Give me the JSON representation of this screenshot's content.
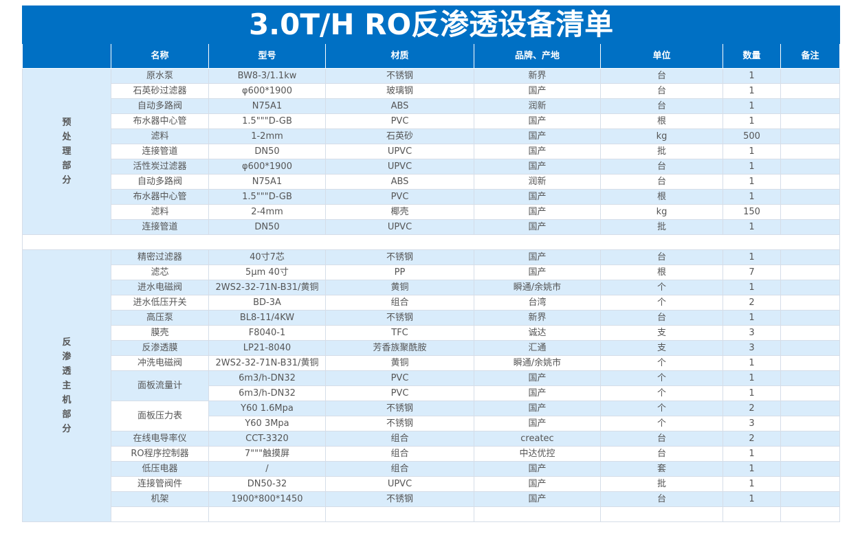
{
  "title": "3.0T/H RO反渗透设备清单",
  "headers": [
    "",
    "名称",
    "型号",
    "材质",
    "品牌、产地",
    "单位",
    "数量",
    "备注"
  ],
  "colors": {
    "header_bg": "#0070c4",
    "stripe": "#d9ecfb"
  },
  "sections": [
    {
      "label": "预处理部分",
      "rows": [
        {
          "name": "原水泵",
          "model": "BW8-3/1.1kw",
          "material": "不锈钢",
          "brand": "新界",
          "unit": "台",
          "qty": "1",
          "note": ""
        },
        {
          "name": "石英砂过滤器",
          "model": "φ600*1900",
          "material": "玻璃钢",
          "brand": "国产",
          "unit": "台",
          "qty": "1",
          "note": ""
        },
        {
          "name": "自动多路阀",
          "model": "N75A1",
          "material": "ABS",
          "brand": "润新",
          "unit": "台",
          "qty": "1",
          "note": ""
        },
        {
          "name": "布水器中心管",
          "model": "1.5\"\"\"D-GB",
          "material": "PVC",
          "brand": "国产",
          "unit": "根",
          "qty": "1",
          "note": ""
        },
        {
          "name": "滤料",
          "model": "1-2mm",
          "material": "石英砂",
          "brand": "国产",
          "unit": "kg",
          "qty": "500",
          "note": ""
        },
        {
          "name": "连接管道",
          "model": "DN50",
          "material": "UPVC",
          "brand": "国产",
          "unit": "批",
          "qty": "1",
          "note": ""
        },
        {
          "name": "活性炭过滤器",
          "model": "φ600*1900",
          "material": "UPVC",
          "brand": "国产",
          "unit": "台",
          "qty": "1",
          "note": ""
        },
        {
          "name": "自动多路阀",
          "model": "N75A1",
          "material": "ABS",
          "brand": "润新",
          "unit": "台",
          "qty": "1",
          "note": ""
        },
        {
          "name": "布水器中心管",
          "model": "1.5\"\"\"D-GB",
          "material": "PVC",
          "brand": "国产",
          "unit": "根",
          "qty": "1",
          "note": ""
        },
        {
          "name": "滤料",
          "model": "2-4mm",
          "material": "椰壳",
          "brand": "国产",
          "unit": "kg",
          "qty": "150",
          "note": ""
        },
        {
          "name": "连接管道",
          "model": "DN50",
          "material": "UPVC",
          "brand": "国产",
          "unit": "批",
          "qty": "1",
          "note": ""
        }
      ]
    },
    {
      "label": "反渗透主机部分",
      "rows": [
        {
          "name": "精密过滤器",
          "model": "40寸7芯",
          "material": "不锈钢",
          "brand": "国产",
          "unit": "台",
          "qty": "1",
          "note": ""
        },
        {
          "name": "滤芯",
          "model": "5μm 40寸",
          "material": "PP",
          "brand": "国产",
          "unit": "根",
          "qty": "7",
          "note": ""
        },
        {
          "name": "进水电磁阀",
          "model": "2WS2-32-71N-B31/黄铜",
          "material": "黄铜",
          "brand": "瞬通/余姚市",
          "unit": "个",
          "qty": "1",
          "note": ""
        },
        {
          "name": "进水低压开关",
          "model": "BD-3A",
          "material": "组合",
          "brand": "台湾",
          "unit": "个",
          "qty": "2",
          "note": ""
        },
        {
          "name": "高压泵",
          "model": "BL8-11/4KW",
          "material": "不锈钢",
          "brand": "新界",
          "unit": "台",
          "qty": "1",
          "note": ""
        },
        {
          "name": "膜壳",
          "model": "F8040-1",
          "material": "TFC",
          "brand": "诚达",
          "unit": "支",
          "qty": "3",
          "note": ""
        },
        {
          "name": "反渗透膜",
          "model": "LP21-8040",
          "material": "芳香族聚酰胺",
          "brand": "汇通",
          "unit": "支",
          "qty": "3",
          "note": ""
        },
        {
          "name": "冲洗电磁阀",
          "model": "2WS2-32-71N-B31/黄铜",
          "material": "黄铜",
          "brand": "瞬通/余姚市",
          "unit": "个",
          "qty": "1",
          "note": ""
        },
        {
          "name": "面板流量计",
          "span": 2,
          "model": "6m3/h-DN32",
          "material": "PVC",
          "brand": "国产",
          "unit": "个",
          "qty": "1",
          "note": ""
        },
        {
          "model": "6m3/h-DN32",
          "material": "PVC",
          "brand": "国产",
          "unit": "个",
          "qty": "1",
          "note": ""
        },
        {
          "name": "面板压力表",
          "span": 2,
          "nameShade": "w",
          "model": "Y60 1.6Mpa",
          "material": "不锈钢",
          "brand": "国产",
          "unit": "个",
          "qty": "2",
          "note": ""
        },
        {
          "model": "Y60 3Mpa",
          "material": "不锈钢",
          "brand": "国产",
          "unit": "个",
          "qty": "3",
          "note": ""
        },
        {
          "name": "在线电导率仪",
          "model": "CCT-3320",
          "material": "组合",
          "brand": "createc",
          "unit": "台",
          "qty": "2",
          "note": ""
        },
        {
          "name": "RO程序控制器",
          "model": "7\"\"\"触摸屏",
          "material": "组合",
          "brand": "中达优控",
          "unit": "台",
          "qty": "1",
          "note": ""
        },
        {
          "name": "低压电器",
          "model": "/",
          "material": "组合",
          "brand": "国产",
          "unit": "套",
          "qty": "1",
          "note": ""
        },
        {
          "name": "连接管阀件",
          "model": "DN50-32",
          "material": "UPVC",
          "brand": "国产",
          "unit": "批",
          "qty": "1",
          "note": ""
        },
        {
          "name": "机架",
          "model": "1900*800*1450",
          "material": "不锈钢",
          "brand": "国产",
          "unit": "台",
          "qty": "1",
          "note": ""
        },
        {
          "name": "",
          "model": "",
          "material": "",
          "brand": "",
          "unit": "",
          "qty": "",
          "note": ""
        }
      ]
    }
  ]
}
